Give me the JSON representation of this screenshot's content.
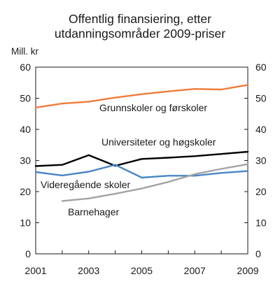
{
  "title_line1": "Offentlig finansiering, etter",
  "title_line2": "utdanningsområder 2009-priser",
  "y_unit": "Mill. kr",
  "chart_data": {
    "type": "line",
    "title": "Offentlig finansiering, etter utdanningsområder 2009-priser",
    "ylabel": "Mill. kr",
    "xlabel": "",
    "xlim": [
      2001,
      2009
    ],
    "ylim": [
      0,
      60
    ],
    "x_ticks": [
      2001,
      2003,
      2005,
      2007,
      2009
    ],
    "y_ticks": [
      0,
      10,
      20,
      30,
      40,
      50,
      60
    ],
    "grid": false,
    "x": [
      2001,
      2002,
      2003,
      2004,
      2005,
      2006,
      2007,
      2008,
      2009
    ],
    "series": [
      {
        "name": "Grunnskoler og førskoler",
        "color": "#f07c3a",
        "values": [
          47.0,
          48.3,
          48.9,
          50.2,
          51.3,
          52.2,
          53.0,
          52.8,
          54.3
        ]
      },
      {
        "name": "Universiteter og høgskoler",
        "color": "#000000",
        "values": [
          28.2,
          28.6,
          31.7,
          28.3,
          30.5,
          30.9,
          31.4,
          32.1,
          32.8
        ]
      },
      {
        "name": "Videregående skoler",
        "color": "#4a86c5",
        "values": [
          26.3,
          25.2,
          26.4,
          28.6,
          24.5,
          25.1,
          25.1,
          26.0,
          26.6
        ]
      },
      {
        "name": "Barnehager",
        "color": "#a3a3a3",
        "values": [
          null,
          17.0,
          17.8,
          19.3,
          21.0,
          23.1,
          25.6,
          27.3,
          28.8
        ]
      }
    ]
  }
}
